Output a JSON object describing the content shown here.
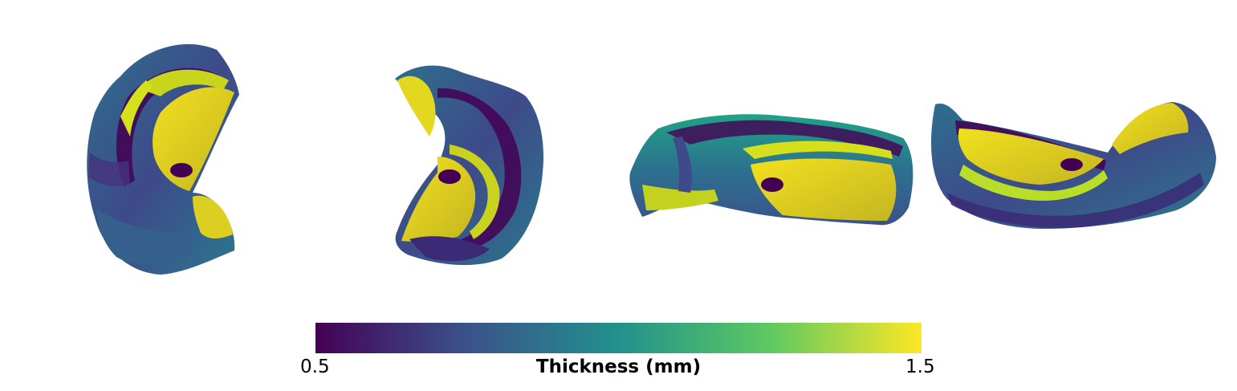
{
  "colorbar": {
    "min_label": "0.5",
    "max_label": "1.5",
    "title": "Thickness (mm)",
    "colormap": "viridis",
    "stops": [
      "#440154",
      "#3b528b",
      "#21918c",
      "#5ec962",
      "#fde725"
    ]
  },
  "views": [
    {
      "name": "view-1"
    },
    {
      "name": "view-2"
    },
    {
      "name": "view-3"
    },
    {
      "name": "view-4"
    }
  ]
}
